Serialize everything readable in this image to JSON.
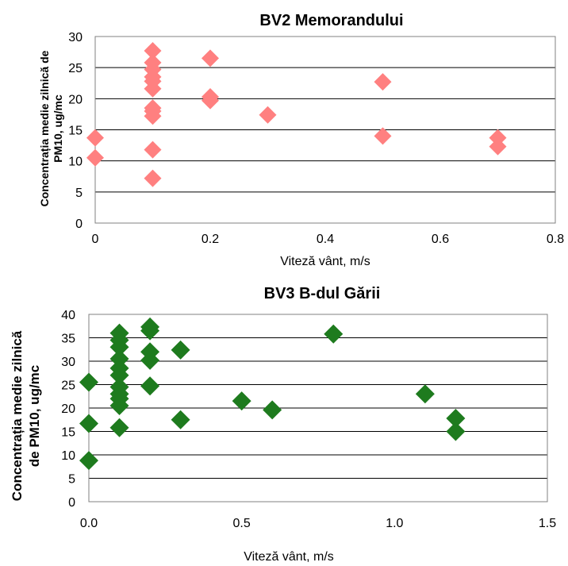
{
  "chart_data": [
    {
      "type": "scatter",
      "title": "BV2 Memorandului",
      "xlabel": "Viteză vânt, m/s",
      "ylabel": [
        "Concentrația medie zilnică de",
        "PM10, ug/mc"
      ],
      "xlim": [
        0,
        0.8
      ],
      "ylim": [
        0,
        30
      ],
      "xticks": [
        "0",
        "0.2",
        "0.4",
        "0.6",
        "0.8"
      ],
      "xtick_values": [
        0,
        0.2,
        0.4,
        0.6,
        0.8
      ],
      "yticks": [
        "0",
        "5",
        "10",
        "15",
        "20",
        "25",
        "30"
      ],
      "ytick_values": [
        0,
        5,
        10,
        15,
        20,
        25,
        30
      ],
      "grid": true,
      "marker": "diamond",
      "color": "#FF8080",
      "points": [
        [
          0,
          13.7
        ],
        [
          0,
          10.5
        ],
        [
          0.1,
          27.7
        ],
        [
          0.1,
          25.8
        ],
        [
          0.1,
          24.7
        ],
        [
          0.1,
          23.5
        ],
        [
          0.1,
          22.8
        ],
        [
          0.1,
          21.6
        ],
        [
          0.1,
          18.5
        ],
        [
          0.1,
          18.0
        ],
        [
          0.1,
          17.2
        ],
        [
          0.1,
          11.8
        ],
        [
          0.1,
          7.2
        ],
        [
          0.2,
          26.5
        ],
        [
          0.2,
          20.3
        ],
        [
          0.2,
          19.7
        ],
        [
          0.3,
          17.4
        ],
        [
          0.5,
          22.7
        ],
        [
          0.5,
          14.0
        ],
        [
          0.7,
          13.7
        ],
        [
          0.7,
          12.3
        ]
      ]
    },
    {
      "type": "scatter",
      "title": "BV3 B-dul Gării",
      "xlabel": "Viteză vânt, m/s",
      "ylabel": [
        "Concentrația medie zilnică",
        "de PM10, ug/mc"
      ],
      "xlim": [
        0,
        1.5
      ],
      "ylim": [
        0,
        40
      ],
      "xticks": [
        "0.0",
        "0.5",
        "1.0",
        "1.5"
      ],
      "xtick_values": [
        0,
        0.5,
        1.0,
        1.5
      ],
      "yticks": [
        "0",
        "5",
        "10",
        "15",
        "20",
        "25",
        "30",
        "35",
        "40"
      ],
      "ytick_values": [
        0,
        5,
        10,
        15,
        20,
        25,
        30,
        35,
        40
      ],
      "grid": true,
      "marker": "diamond",
      "color": "#1E7B1E",
      "points": [
        [
          0,
          25.5
        ],
        [
          0,
          16.7
        ],
        [
          0,
          8.8
        ],
        [
          0.1,
          36.0
        ],
        [
          0.1,
          34.5
        ],
        [
          0.1,
          33.0
        ],
        [
          0.1,
          30.5
        ],
        [
          0.1,
          28.5
        ],
        [
          0.1,
          27.0
        ],
        [
          0.1,
          24.5
        ],
        [
          0.1,
          23.0
        ],
        [
          0.1,
          22.0
        ],
        [
          0.1,
          20.5
        ],
        [
          0.1,
          15.8
        ],
        [
          0.2,
          37.3
        ],
        [
          0.2,
          36.5
        ],
        [
          0.2,
          32.0
        ],
        [
          0.2,
          30.2
        ],
        [
          0.2,
          24.7
        ],
        [
          0.3,
          32.4
        ],
        [
          0.3,
          17.5
        ],
        [
          0.5,
          21.5
        ],
        [
          0.6,
          19.6
        ],
        [
          0.8,
          35.8
        ],
        [
          1.1,
          23.0
        ],
        [
          1.2,
          17.8
        ],
        [
          1.2,
          15.0
        ]
      ]
    }
  ]
}
